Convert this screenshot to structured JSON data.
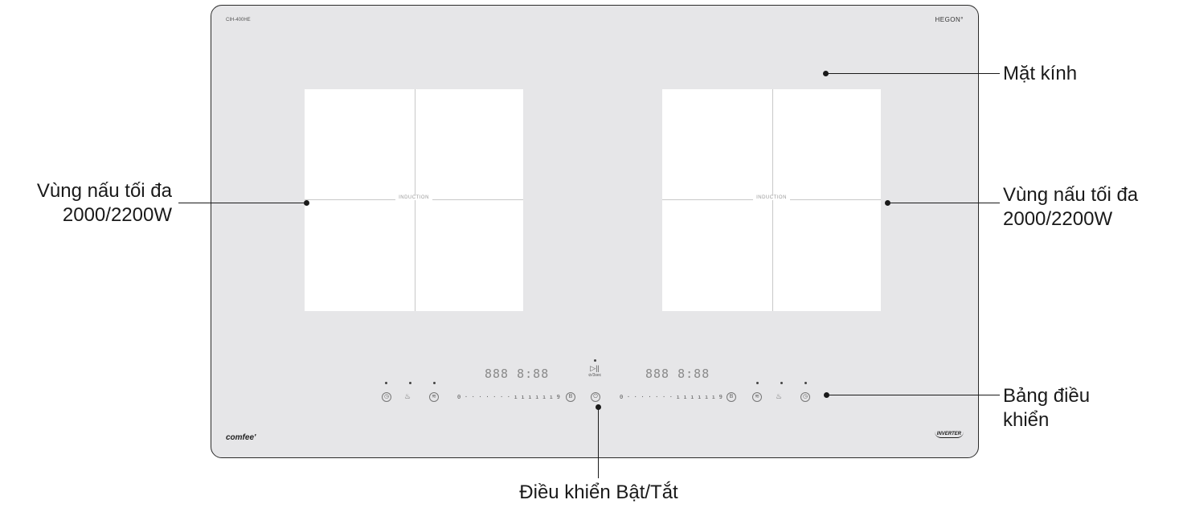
{
  "hob": {
    "model": "CIH-400HE",
    "brand_top": "HEGON°",
    "logo_left": "comfee'",
    "logo_right": "INVERTER",
    "zone_label": "INDUCTION",
    "display_left": "888 8:88",
    "display_right": "888 8:88",
    "slider_left": "0 · · · · · · · ı ı ı ı ı ı 9",
    "slider_right": "0 · · · · · · · ı ı ı ı ı ı 9",
    "boost_label": "B",
    "power_icon": "power-icon",
    "play_pause": "▷||",
    "play_pause_sub": "⊘/3sec"
  },
  "callouts": {
    "glass": "Mặt kính",
    "zone_left_line1": "Vùng nấu tối đa",
    "zone_left_line2": "2000/2200W",
    "zone_right_line1": "Vùng nấu tối đa",
    "zone_right_line2": "2000/2200W",
    "panel_line1": "Bảng điều",
    "panel_line2": "khiển",
    "power": "Điều khiển Bật/Tắt"
  }
}
